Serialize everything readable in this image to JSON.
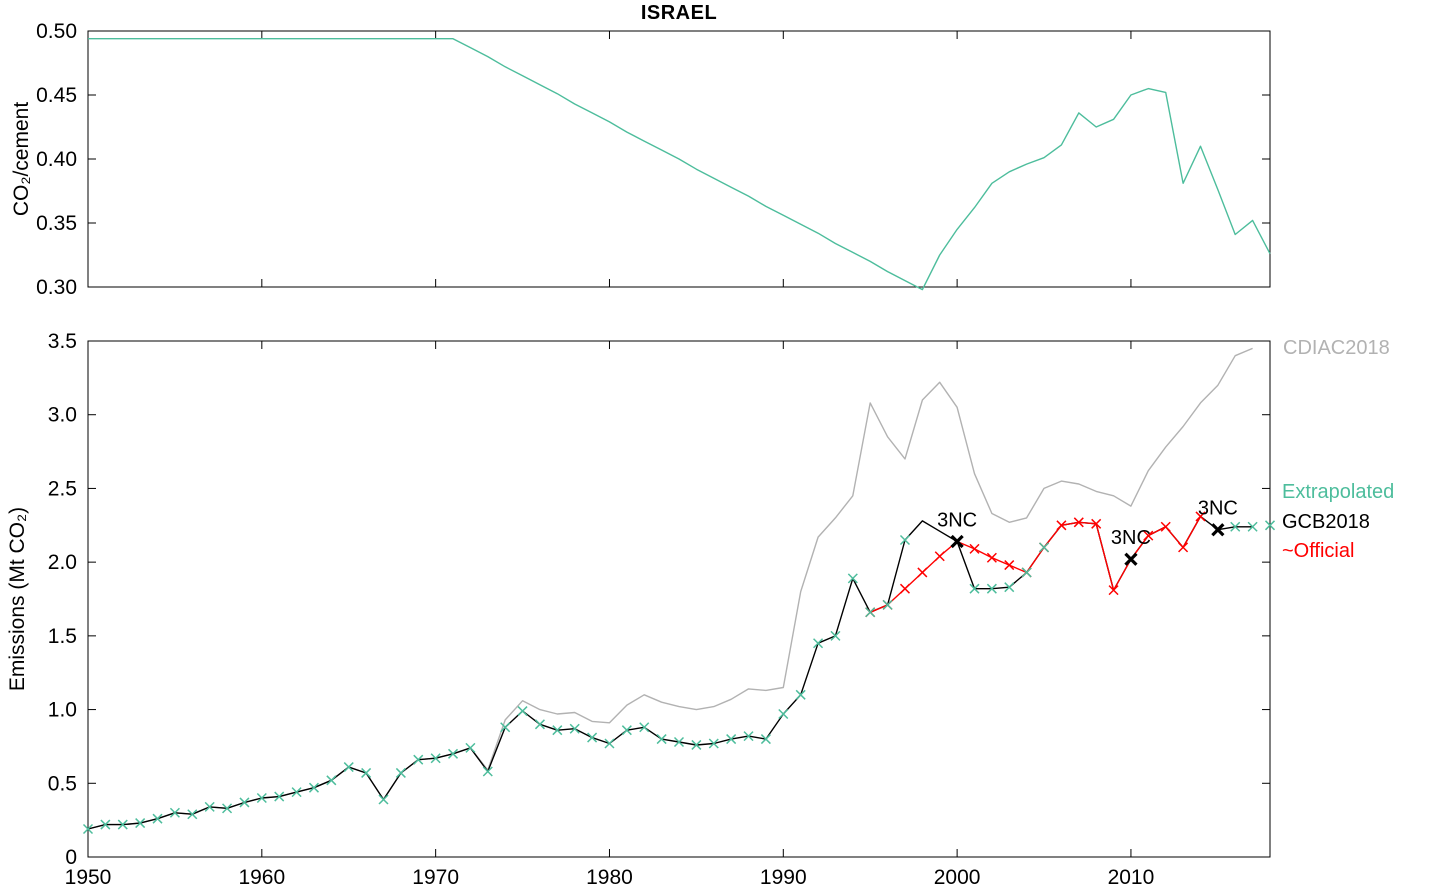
{
  "title": "ISRAEL",
  "legend": {
    "position": "right-outside",
    "items": [
      {
        "label": "CDIAC2018",
        "color": "#b2b2b2"
      },
      {
        "label": "Extrapolated",
        "color": "#4dbd9c"
      },
      {
        "label": "GCB2018",
        "color": "#000000"
      },
      {
        "label": "~Official",
        "color": "#ff0000"
      }
    ]
  },
  "chart_data": [
    {
      "id": "cement-ratio",
      "type": "line",
      "title": "ISRAEL",
      "xlabel": "",
      "ylabel": "CO₂/cement",
      "xlim": [
        1950,
        2018
      ],
      "ylim": [
        0.3,
        0.5
      ],
      "grid": false,
      "yticks": [
        "0.30",
        "0.35",
        "0.40",
        "0.45",
        "0.50"
      ],
      "xticks": [
        1950,
        1960,
        1970,
        1980,
        1990,
        2000,
        2010
      ],
      "series": [
        {
          "name": "co2-per-cement-ratio",
          "color": "#4dbd9c",
          "style": "line",
          "x": [
            1950,
            1951,
            1952,
            1953,
            1954,
            1955,
            1956,
            1957,
            1958,
            1959,
            1960,
            1961,
            1962,
            1963,
            1964,
            1965,
            1966,
            1967,
            1968,
            1969,
            1970,
            1971,
            1972,
            1973,
            1974,
            1975,
            1976,
            1977,
            1978,
            1979,
            1980,
            1981,
            1982,
            1983,
            1984,
            1985,
            1986,
            1987,
            1988,
            1989,
            1990,
            1991,
            1992,
            1993,
            1994,
            1995,
            1996,
            1997,
            1998,
            1999,
            2000,
            2001,
            2002,
            2003,
            2004,
            2005,
            2006,
            2007,
            2008,
            2009,
            2010,
            2011,
            2012,
            2013,
            2014,
            2015,
            2016,
            2017,
            2018
          ],
          "y": [
            0.494,
            0.494,
            0.494,
            0.494,
            0.494,
            0.494,
            0.494,
            0.494,
            0.494,
            0.494,
            0.494,
            0.494,
            0.494,
            0.494,
            0.494,
            0.494,
            0.494,
            0.494,
            0.494,
            0.494,
            0.494,
            0.494,
            0.487,
            0.48,
            0.472,
            0.465,
            0.458,
            0.451,
            0.443,
            0.436,
            0.429,
            0.421,
            0.414,
            0.407,
            0.4,
            0.392,
            0.385,
            0.378,
            0.371,
            0.363,
            0.356,
            0.349,
            0.342,
            0.334,
            0.327,
            0.32,
            0.312,
            0.305,
            0.298,
            0.325,
            0.345,
            0.362,
            0.381,
            0.39,
            0.396,
            0.401,
            0.411,
            0.436,
            0.425,
            0.431,
            0.45,
            0.455,
            0.452,
            0.381,
            0.41,
            0.376,
            0.341,
            0.352,
            0.326
          ]
        }
      ]
    },
    {
      "id": "emissions",
      "type": "line",
      "title": "",
      "xlabel": "",
      "ylabel": "Emissions (Mt CO₂)",
      "xlim": [
        1950,
        2018
      ],
      "ylim": [
        0,
        3.5
      ],
      "grid": false,
      "yticks": [
        "0",
        "0.5",
        "1.0",
        "1.5",
        "2.0",
        "2.5",
        "3.0",
        "3.5"
      ],
      "xticks": [
        1950,
        1960,
        1970,
        1980,
        1990,
        2000,
        2010
      ],
      "series": [
        {
          "name": "CDIAC2018",
          "color": "#b2b2b2",
          "style": "line",
          "x": [
            1950,
            1951,
            1952,
            1953,
            1954,
            1955,
            1956,
            1957,
            1958,
            1959,
            1960,
            1961,
            1962,
            1963,
            1964,
            1965,
            1966,
            1967,
            1968,
            1969,
            1970,
            1971,
            1972,
            1973,
            1974,
            1975,
            1976,
            1977,
            1978,
            1979,
            1980,
            1981,
            1982,
            1983,
            1984,
            1985,
            1986,
            1987,
            1988,
            1989,
            1990,
            1991,
            1992,
            1993,
            1994,
            1995,
            1996,
            1997,
            1998,
            1999,
            2000,
            2001,
            2002,
            2003,
            2004,
            2005,
            2006,
            2007,
            2008,
            2009,
            2010,
            2011,
            2012,
            2013,
            2014,
            2015,
            2016,
            2017
          ],
          "y": [
            0.19,
            0.22,
            0.22,
            0.23,
            0.26,
            0.3,
            0.29,
            0.34,
            0.33,
            0.37,
            0.4,
            0.41,
            0.44,
            0.47,
            0.52,
            0.61,
            0.57,
            0.39,
            0.57,
            0.66,
            0.67,
            0.7,
            0.74,
            0.59,
            0.93,
            1.06,
            1.0,
            0.97,
            0.98,
            0.92,
            0.91,
            1.03,
            1.1,
            1.05,
            1.02,
            1.0,
            1.02,
            1.07,
            1.14,
            1.13,
            1.15,
            1.8,
            2.17,
            2.3,
            2.45,
            3.08,
            2.85,
            2.7,
            3.1,
            3.22,
            3.05,
            2.6,
            2.33,
            2.27,
            2.3,
            2.5,
            2.55,
            2.53,
            2.48,
            2.45,
            2.38,
            2.62,
            2.78,
            2.92,
            3.08,
            3.2,
            3.4,
            3.45
          ]
        },
        {
          "name": "GCB2018",
          "color": "#000000",
          "style": "line",
          "x": [
            1950,
            1951,
            1952,
            1953,
            1954,
            1955,
            1956,
            1957,
            1958,
            1959,
            1960,
            1961,
            1962,
            1963,
            1964,
            1965,
            1966,
            1967,
            1968,
            1969,
            1970,
            1971,
            1972,
            1973,
            1974,
            1975,
            1976,
            1977,
            1978,
            1979,
            1980,
            1981,
            1982,
            1983,
            1984,
            1985,
            1986,
            1987,
            1988,
            1989,
            1990,
            1991,
            1992,
            1993,
            1994,
            1995,
            1996,
            1997,
            1998,
            1999,
            2000,
            2001,
            2002,
            2003,
            2004,
            2005,
            2006,
            2007,
            2008,
            2009,
            2010,
            2011,
            2012,
            2013,
            2014,
            2015,
            2016,
            2017
          ],
          "y": [
            0.19,
            0.22,
            0.22,
            0.23,
            0.26,
            0.3,
            0.29,
            0.34,
            0.33,
            0.37,
            0.4,
            0.41,
            0.44,
            0.47,
            0.52,
            0.61,
            0.57,
            0.39,
            0.57,
            0.66,
            0.67,
            0.7,
            0.74,
            0.58,
            0.88,
            0.99,
            0.9,
            0.86,
            0.87,
            0.81,
            0.77,
            0.86,
            0.88,
            0.8,
            0.78,
            0.76,
            0.77,
            0.8,
            0.82,
            0.8,
            0.97,
            1.1,
            1.45,
            1.5,
            1.89,
            1.66,
            1.71,
            2.15,
            2.28,
            2.21,
            2.14,
            1.82,
            1.82,
            1.83,
            1.93,
            2.1,
            2.25,
            2.27,
            2.26,
            1.81,
            2.02,
            2.18,
            2.24,
            2.1,
            2.31,
            2.22,
            2.24,
            2.24
          ]
        },
        {
          "name": "~Official",
          "color": "#ff0000",
          "style": "line+markers",
          "x": [
            1995,
            1996,
            1997,
            1998,
            1999,
            2000,
            2001,
            2002,
            2003,
            2004,
            2005,
            2006,
            2007,
            2008,
            2009,
            2010,
            2011,
            2012,
            2013,
            2014
          ],
          "y": [
            1.66,
            1.71,
            1.82,
            1.93,
            2.04,
            2.14,
            2.09,
            2.03,
            1.98,
            1.93,
            2.1,
            2.25,
            2.27,
            2.26,
            1.81,
            2.02,
            2.18,
            2.24,
            2.1,
            2.31
          ]
        },
        {
          "name": "Extrapolated",
          "color": "#4dbd9c",
          "style": "markers",
          "x": [
            1950,
            1951,
            1952,
            1953,
            1954,
            1955,
            1956,
            1957,
            1958,
            1959,
            1960,
            1961,
            1962,
            1963,
            1964,
            1965,
            1966,
            1967,
            1968,
            1969,
            1970,
            1971,
            1972,
            1973,
            1974,
            1975,
            1976,
            1977,
            1978,
            1979,
            1980,
            1981,
            1982,
            1983,
            1984,
            1985,
            1986,
            1987,
            1988,
            1989,
            1990,
            1991,
            1992,
            1993,
            1994,
            1995,
            1996,
            1997,
            2001,
            2002,
            2003,
            2004,
            2005,
            2016,
            2017,
            2018
          ],
          "y": [
            0.19,
            0.22,
            0.22,
            0.23,
            0.26,
            0.3,
            0.29,
            0.34,
            0.33,
            0.37,
            0.4,
            0.41,
            0.44,
            0.47,
            0.52,
            0.61,
            0.57,
            0.39,
            0.57,
            0.66,
            0.67,
            0.7,
            0.74,
            0.58,
            0.88,
            0.99,
            0.9,
            0.86,
            0.87,
            0.81,
            0.77,
            0.86,
            0.88,
            0.8,
            0.78,
            0.76,
            0.77,
            0.8,
            0.82,
            0.8,
            0.97,
            1.1,
            1.45,
            1.5,
            1.89,
            1.66,
            1.71,
            2.15,
            1.82,
            1.82,
            1.83,
            1.93,
            2.1,
            2.24,
            2.24,
            2.25
          ]
        }
      ],
      "nc_markers": {
        "label": "3NC",
        "color": "#000000",
        "points": [
          {
            "x": 2000,
            "y": 2.14
          },
          {
            "x": 2010,
            "y": 2.02
          },
          {
            "x": 2015,
            "y": 2.22
          }
        ]
      }
    }
  ]
}
